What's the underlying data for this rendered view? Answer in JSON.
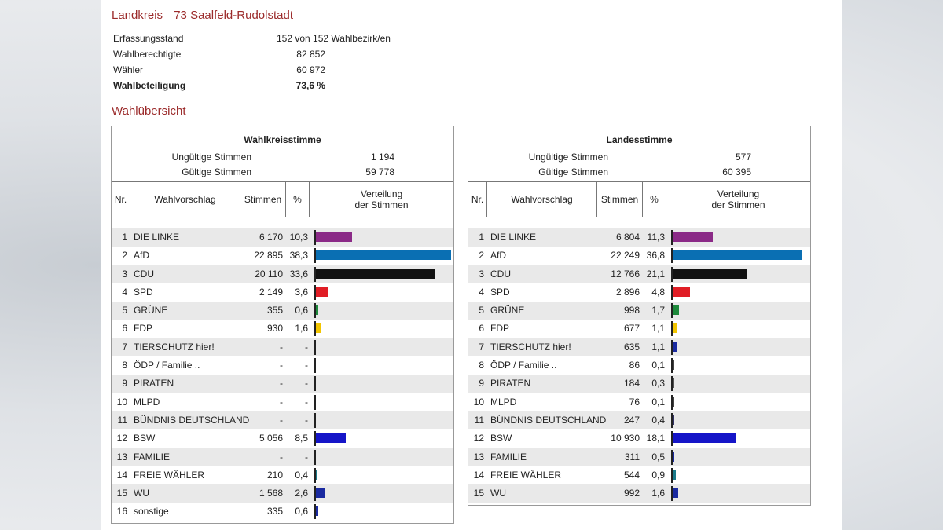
{
  "header": {
    "label": "Landkreis",
    "district": "73 Saalfeld-Rudolstadt"
  },
  "info": [
    {
      "label": "Erfassungsstand",
      "value": "152 von 152 Wahlbezirk/en",
      "wide": true,
      "bold": false
    },
    {
      "label": "Wahlberechtigte",
      "value": "82 852",
      "wide": false,
      "bold": false
    },
    {
      "label": "Wähler",
      "value": "60 972",
      "wide": false,
      "bold": false
    },
    {
      "label": "Wahlbeteiligung",
      "value": "73,6  %",
      "wide": false,
      "bold": true
    }
  ],
  "section_title": "Wahlübersicht",
  "columns": {
    "nr": "Nr.",
    "party": "Wahlvorschlag",
    "votes": "Stimmen",
    "pct": "%",
    "dist1": "Verteilung",
    "dist2": "der Stimmen"
  },
  "colors": {
    "DIE LINKE": "#8b2a87",
    "AfD": "#0a6fb3",
    "CDU": "#111111",
    "SPD": "#e01d25",
    "GRÜNE": "#1e8a3c",
    "FDP": "#f2c500",
    "TIERSCHUTZ hier!": "#1a2aa0",
    "ÖDP / Familie ..": "#444444",
    "PIRATEN": "#555555",
    "MLPD": "#444444",
    "BÜNDNIS DEUTSCHLAND": "#333366",
    "BSW": "#1515c8",
    "FAMILIE": "#1a2aa0",
    "FREIE WÄHLER": "#1a7a8a",
    "WU": "#1a2aa0",
    "sonstige": "#1a2aa0"
  },
  "panels": [
    {
      "title": "Wahlkreisstimme",
      "invalid_label": "Ungültige Stimmen",
      "invalid": "1 194",
      "valid_label": "Gültige Stimmen",
      "valid": "59 778",
      "rows": [
        {
          "nr": "1",
          "party": "DIE LINKE",
          "votes": "6 170",
          "pct": "10,3",
          "share": 10.3
        },
        {
          "nr": "2",
          "party": "AfD",
          "votes": "22 895",
          "pct": "38,3",
          "share": 38.3
        },
        {
          "nr": "3",
          "party": "CDU",
          "votes": "20 110",
          "pct": "33,6",
          "share": 33.6
        },
        {
          "nr": "4",
          "party": "SPD",
          "votes": "2 149",
          "pct": "3,6",
          "share": 3.6
        },
        {
          "nr": "5",
          "party": "GRÜNE",
          "votes": "355",
          "pct": "0,6",
          "share": 0.6
        },
        {
          "nr": "6",
          "party": "FDP",
          "votes": "930",
          "pct": "1,6",
          "share": 1.6
        },
        {
          "nr": "7",
          "party": "TIERSCHUTZ hier!",
          "votes": "-",
          "pct": "-",
          "share": 0
        },
        {
          "nr": "8",
          "party": "ÖDP / Familie ..",
          "votes": "-",
          "pct": "-",
          "share": 0
        },
        {
          "nr": "9",
          "party": "PIRATEN",
          "votes": "-",
          "pct": "-",
          "share": 0
        },
        {
          "nr": "10",
          "party": "MLPD",
          "votes": "-",
          "pct": "-",
          "share": 0
        },
        {
          "nr": "11",
          "party": "BÜNDNIS DEUTSCHLAND",
          "votes": "-",
          "pct": "-",
          "share": 0
        },
        {
          "nr": "12",
          "party": "BSW",
          "votes": "5 056",
          "pct": "8,5",
          "share": 8.5
        },
        {
          "nr": "13",
          "party": "FAMILIE",
          "votes": "-",
          "pct": "-",
          "share": 0
        },
        {
          "nr": "14",
          "party": "FREIE WÄHLER",
          "votes": "210",
          "pct": "0,4",
          "share": 0.4
        },
        {
          "nr": "15",
          "party": "WU",
          "votes": "1 568",
          "pct": "2,6",
          "share": 2.6
        },
        {
          "nr": "16",
          "party": "sonstige",
          "votes": "335",
          "pct": "0,6",
          "share": 0.6
        }
      ]
    },
    {
      "title": "Landesstimme",
      "invalid_label": "Ungültige Stimmen",
      "invalid": "577",
      "valid_label": "Gültige Stimmen",
      "valid": "60 395",
      "rows": [
        {
          "nr": "1",
          "party": "DIE LINKE",
          "votes": "6 804",
          "pct": "11,3",
          "share": 11.3
        },
        {
          "nr": "2",
          "party": "AfD",
          "votes": "22 249",
          "pct": "36,8",
          "share": 36.8
        },
        {
          "nr": "3",
          "party": "CDU",
          "votes": "12 766",
          "pct": "21,1",
          "share": 21.1
        },
        {
          "nr": "4",
          "party": "SPD",
          "votes": "2 896",
          "pct": "4,8",
          "share": 4.8
        },
        {
          "nr": "5",
          "party": "GRÜNE",
          "votes": "998",
          "pct": "1,7",
          "share": 1.7
        },
        {
          "nr": "6",
          "party": "FDP",
          "votes": "677",
          "pct": "1,1",
          "share": 1.1
        },
        {
          "nr": "7",
          "party": "TIERSCHUTZ hier!",
          "votes": "635",
          "pct": "1,1",
          "share": 1.1
        },
        {
          "nr": "8",
          "party": "ÖDP / Familie ..",
          "votes": "86",
          "pct": "0,1",
          "share": 0.1
        },
        {
          "nr": "9",
          "party": "PIRATEN",
          "votes": "184",
          "pct": "0,3",
          "share": 0.3
        },
        {
          "nr": "10",
          "party": "MLPD",
          "votes": "76",
          "pct": "0,1",
          "share": 0.1
        },
        {
          "nr": "11",
          "party": "BÜNDNIS DEUTSCHLAND",
          "votes": "247",
          "pct": "0,4",
          "share": 0.4
        },
        {
          "nr": "12",
          "party": "BSW",
          "votes": "10 930",
          "pct": "18,1",
          "share": 18.1
        },
        {
          "nr": "13",
          "party": "FAMILIE",
          "votes": "311",
          "pct": "0,5",
          "share": 0.5
        },
        {
          "nr": "14",
          "party": "FREIE WÄHLER",
          "votes": "544",
          "pct": "0,9",
          "share": 0.9
        },
        {
          "nr": "15",
          "party": "WU",
          "votes": "992",
          "pct": "1,6",
          "share": 1.6
        }
      ]
    }
  ]
}
